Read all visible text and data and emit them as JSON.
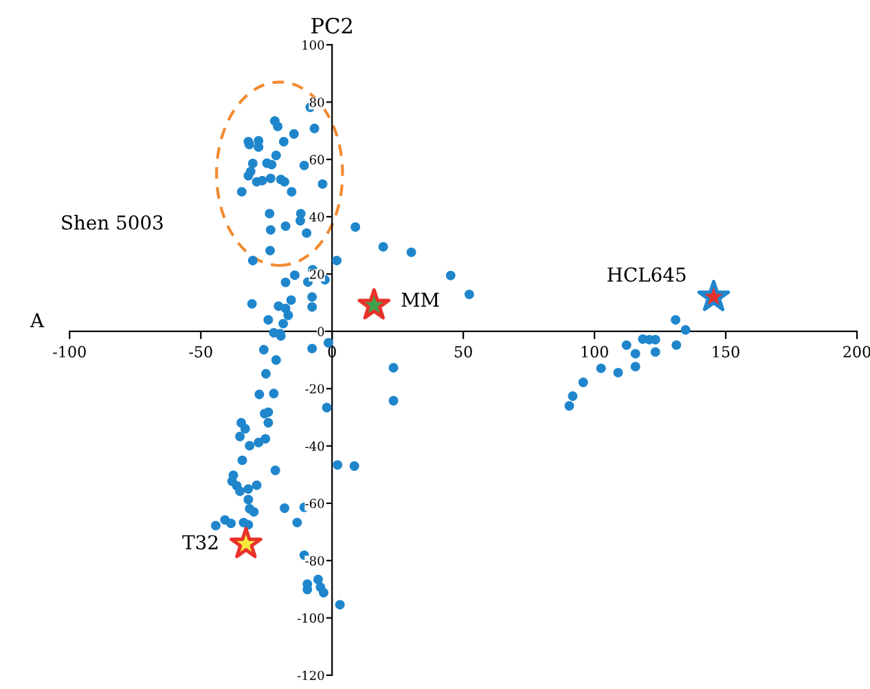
{
  "chart_data": {
    "type": "scatter",
    "ylabel": "PC2",
    "annotations": [
      "A",
      "Shen 5003"
    ],
    "xlim": [
      -100,
      200
    ],
    "ylim": [
      -120,
      100
    ],
    "xticks": [
      -100,
      -50,
      0,
      50,
      100,
      150,
      200
    ],
    "yticks": [
      -120,
      -100,
      -80,
      -60,
      -40,
      -20,
      0,
      20,
      40,
      60,
      80,
      100
    ],
    "grid": false,
    "legend": false,
    "marker": "circle",
    "series": [
      {
        "color": "#1f86cc",
        "x": [
          -8.3,
          -21.8,
          -20.7,
          -6.7,
          -14.5,
          -31.9,
          -28,
          -28,
          -31.5,
          -18.4,
          -21.3,
          -10.6,
          -30.2,
          -24.8,
          -23,
          -31,
          -31.9,
          -28.7,
          -26.6,
          -23.4,
          -19.5,
          -18.1,
          -3.6,
          -15.4,
          -34.4,
          -23.8,
          -11.9,
          -12.1,
          -17.7,
          -23.4,
          -9.7,
          8.9,
          19.5,
          -23.6,
          -30.2,
          1.8,
          -7.4,
          -14.2,
          -2.7,
          -17.7,
          -9.2,
          -7.6,
          -15.6,
          -30.5,
          -20.4,
          -17.7,
          -7.6,
          -16.7,
          -24.3,
          -18.6,
          -22.2,
          -19.8,
          30.2,
          45.2,
          52.3,
          -1.4,
          23.4,
          23.4,
          -19.5,
          -26,
          -7.6,
          -21.3,
          -25.2,
          -27.7,
          -22.2,
          -2,
          -25.7,
          -24.3,
          -24.3,
          -34.6,
          -33.1,
          -35.1,
          -25.4,
          -28,
          -31.4,
          -34.2,
          -21.6,
          -37.6,
          -38.1,
          -36.3,
          -35.1,
          -31.9,
          -28.7,
          -31.9,
          -31.4,
          -29.8,
          -18.1,
          -10.6,
          -13.3,
          -44.3,
          -40.8,
          -38.5,
          -33.7,
          -31.9,
          -10.6,
          -9.4,
          -9.4,
          -5.3,
          -4.4,
          -3.2,
          3,
          2.1,
          8.5,
          130.9,
          134.7,
          112.2,
          118.4,
          120.9,
          123.2,
          131.2,
          115.6,
          123.2,
          102.5,
          109,
          115.6,
          95.7,
          91.7,
          90.4
        ],
        "values": [
          78.2,
          73.4,
          71.5,
          70.8,
          68.9,
          66.2,
          66.5,
          64.3,
          65.2,
          66.2,
          61.4,
          57.9,
          58.6,
          58.7,
          58.2,
          55.8,
          54.3,
          52.2,
          52.6,
          53.4,
          53,
          52.2,
          51.4,
          48.7,
          48.7,
          41.1,
          41.1,
          38.6,
          36.7,
          35.4,
          34.3,
          36.4,
          29.5,
          28.2,
          24.7,
          24.7,
          21.5,
          19.6,
          18,
          17.1,
          17.2,
          12,
          10.9,
          9.6,
          8.8,
          8,
          8.5,
          5.6,
          4,
          2.7,
          -0.5,
          -0.8,
          27.6,
          19.5,
          12.9,
          -4,
          -12.7,
          -24.2,
          -1.6,
          -6.4,
          -6,
          -10,
          -14.8,
          -22,
          -21.7,
          -26.6,
          -28.7,
          -28.2,
          -31.9,
          -31.9,
          -34,
          -36.7,
          -37.5,
          -38.8,
          -39.9,
          -45,
          -48.5,
          -50.2,
          -52.3,
          -53.9,
          -55.8,
          -55,
          -53.7,
          -58.7,
          -61.9,
          -63,
          -61.7,
          -61.4,
          -66.7,
          -67.8,
          -65.8,
          -67,
          -66.7,
          -67.5,
          -78.1,
          -88.2,
          -90.1,
          -86.6,
          -89.3,
          -91.2,
          -95.4,
          -46.6,
          -47,
          4,
          0.5,
          -4.8,
          -2.7,
          -2.9,
          -2.9,
          -4.8,
          -7.8,
          -7.2,
          -12.9,
          -14.4,
          -12.3,
          -17.8,
          -22.6,
          -26
        ]
      },
      {
        "name": "MM",
        "color": "#3fa34d",
        "marker": "star",
        "x": [
          16
        ],
        "values": [
          9.1
        ]
      },
      {
        "name": "HCL645",
        "color": "#e8312a",
        "marker": "star",
        "x": [
          145.4
        ],
        "values": [
          12
        ]
      },
      {
        "name": "T32",
        "color": "#f6ea3c",
        "marker": "star",
        "x": [
          -32.8
        ],
        "values": [
          -74.2
        ]
      }
    ]
  }
}
